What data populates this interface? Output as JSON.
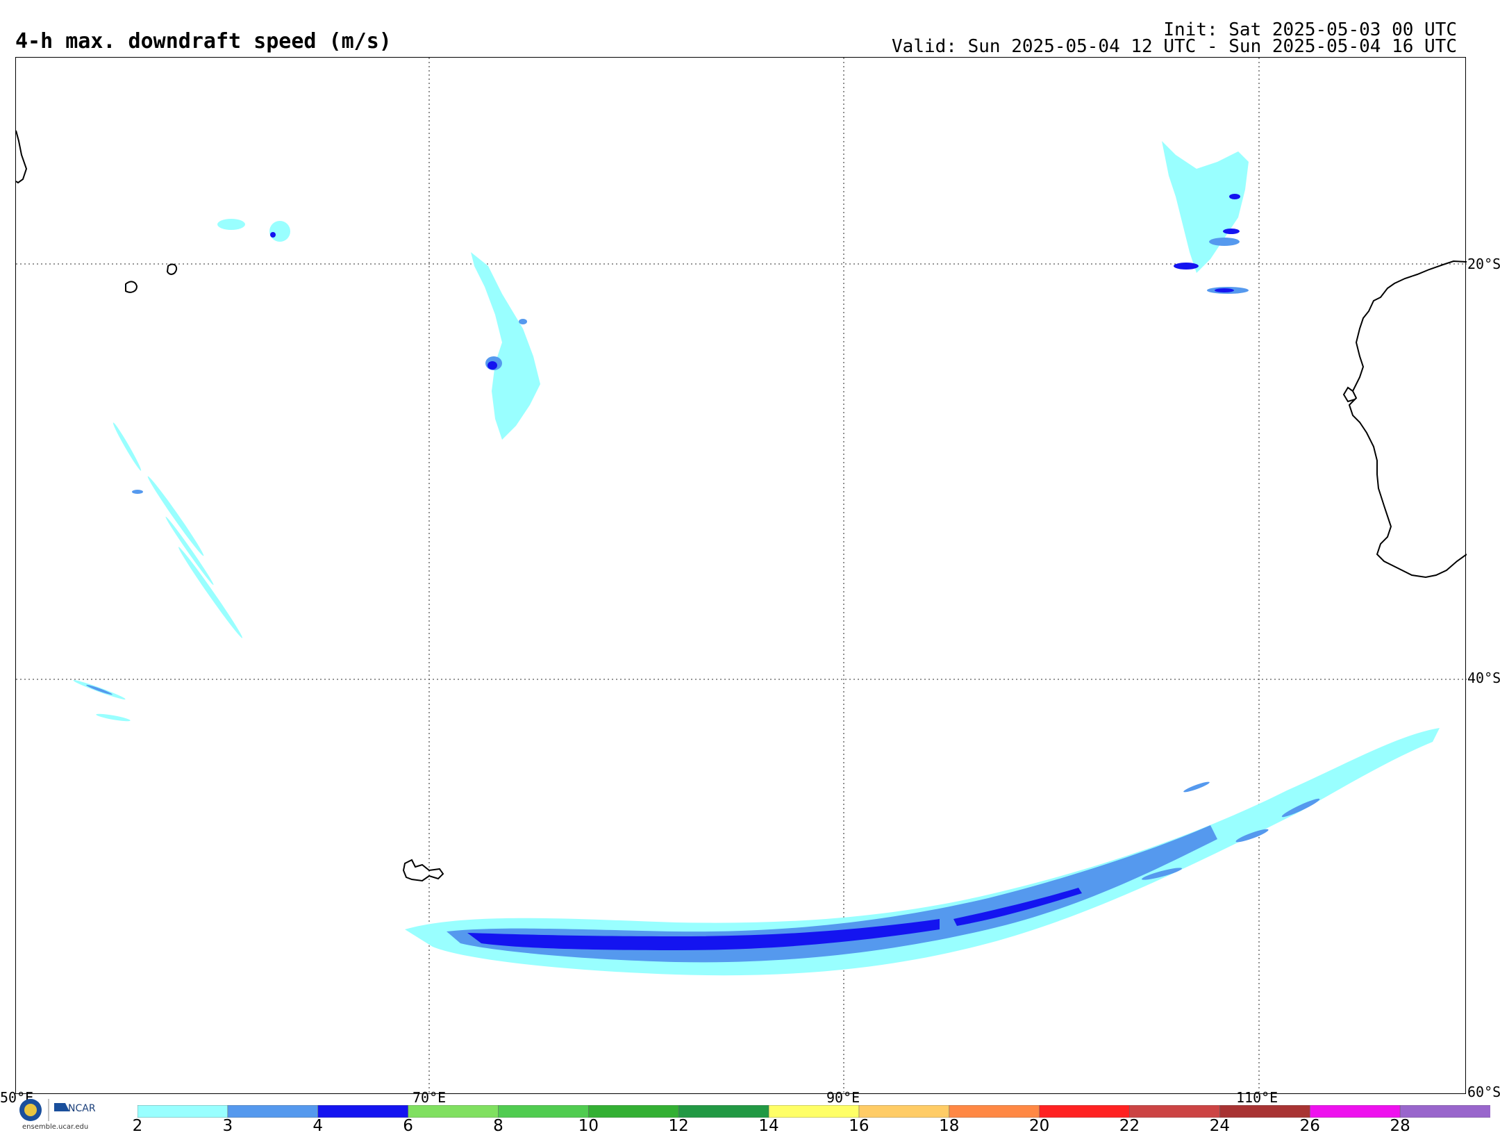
{
  "header": {
    "title": "4-h max. downdraft speed (m/s)",
    "init": "Init: Sat 2025-05-03 00 UTC",
    "valid": "Valid: Sun 2025-05-04 12 UTC - Sun 2025-05-04 16 UTC"
  },
  "map": {
    "lat_labels": [
      "20°S",
      "40°S",
      "60°S"
    ],
    "lon_labels": [
      "50°E",
      "70°E",
      "90°E",
      "110°E"
    ]
  },
  "colorbar": {
    "ticks": [
      "2",
      "3",
      "4",
      "6",
      "8",
      "10",
      "12",
      "14",
      "16",
      "18",
      "20",
      "22",
      "24",
      "26",
      "28"
    ],
    "colors": [
      "#99ffff",
      "#5599ee",
      "#1414f0",
      "#80e060",
      "#50cc50",
      "#33b033",
      "#229944",
      "#ffff66",
      "#ffcc66",
      "#ff8844",
      "#ff2222",
      "#cc4444",
      "#a83333",
      "#ee11ee",
      "#9966cc"
    ]
  },
  "logo": {
    "org": "NCAR",
    "url": "ensemble.ucar.edu"
  }
}
